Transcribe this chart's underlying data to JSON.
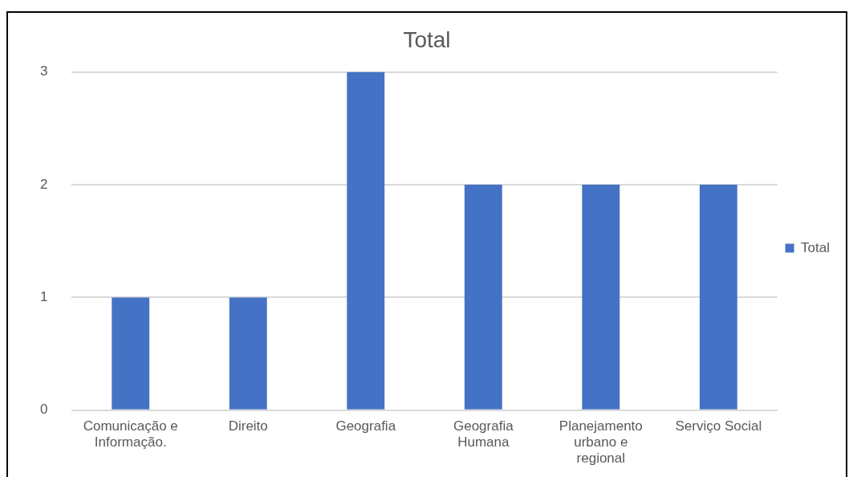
{
  "chart_data": {
    "type": "bar",
    "title": "Total",
    "categories": [
      "Comunicação e Informação.",
      "Direito",
      "Geografia",
      "Geografia Humana",
      "Planejamento urbano e regional",
      "Serviço Social"
    ],
    "series": [
      {
        "name": "Total",
        "color": "#4472c4",
        "values": [
          1,
          1,
          3,
          2,
          2,
          2
        ]
      }
    ],
    "ylim": [
      0,
      3
    ],
    "yticks": [
      0,
      1,
      2,
      3
    ],
    "grid": "y",
    "legend": "right"
  }
}
